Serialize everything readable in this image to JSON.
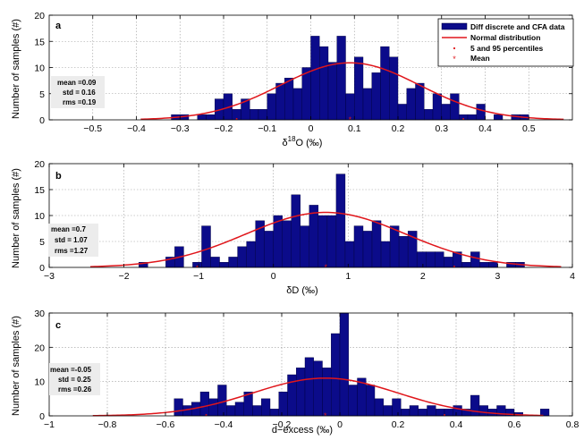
{
  "colors": {
    "bar": "#0b0b8a",
    "bar_edge": "#00003a",
    "normal": "#e0161b",
    "stats_box": "#ececec"
  },
  "legend": {
    "items": [
      {
        "label": "Diff discrete and CFA data",
        "kind": "bar"
      },
      {
        "label": "Normal distribution",
        "kind": "line"
      },
      {
        "label": "5 and 95 percentiles",
        "kind": "dot"
      },
      {
        "label": "Mean",
        "kind": "star"
      }
    ]
  },
  "chart_data": [
    {
      "type": "bar",
      "panel": "a",
      "xlabel": "δ18O (‰)",
      "xlabel_parts": {
        "delta": "δ",
        "sup": "18",
        "main": "O (‰)"
      },
      "ylabel": "Number of samples (#)",
      "xlim": [
        -0.6,
        0.6
      ],
      "ylim": [
        0,
        20
      ],
      "xticks": [
        -0.5,
        -0.4,
        -0.3,
        -0.2,
        -0.1,
        0,
        0.1,
        0.2,
        0.3,
        0.4,
        0.5
      ],
      "xtick_labels": [
        "−0.5",
        "−0.4",
        "−0.3",
        "−0.2",
        "−0.1",
        "0",
        "0.1",
        "0.2",
        "0.3",
        "0.4",
        "0.5"
      ],
      "yticks": [
        0,
        5,
        10,
        15,
        20
      ],
      "grid": true,
      "legend": "top-right",
      "stats": [
        "mean =0.09",
        "std = 0.16",
        "rms =0.19"
      ],
      "bin_width": 0.02,
      "bars": [
        [
          -0.31,
          1
        ],
        [
          -0.29,
          1
        ],
        [
          -0.25,
          1
        ],
        [
          -0.23,
          1
        ],
        [
          -0.21,
          4
        ],
        [
          -0.19,
          5
        ],
        [
          -0.17,
          2
        ],
        [
          -0.15,
          4
        ],
        [
          -0.13,
          2
        ],
        [
          -0.11,
          2
        ],
        [
          -0.09,
          5
        ],
        [
          -0.07,
          7
        ],
        [
          -0.05,
          8
        ],
        [
          -0.03,
          6
        ],
        [
          -0.01,
          10
        ],
        [
          0.01,
          16
        ],
        [
          0.03,
          14
        ],
        [
          0.05,
          11
        ],
        [
          0.07,
          16
        ],
        [
          0.09,
          5
        ],
        [
          0.11,
          12
        ],
        [
          0.13,
          6
        ],
        [
          0.15,
          9
        ],
        [
          0.17,
          14
        ],
        [
          0.19,
          12
        ],
        [
          0.21,
          3
        ],
        [
          0.23,
          6
        ],
        [
          0.25,
          7
        ],
        [
          0.27,
          2
        ],
        [
          0.29,
          5
        ],
        [
          0.31,
          3
        ],
        [
          0.33,
          5
        ],
        [
          0.35,
          1
        ],
        [
          0.37,
          1
        ],
        [
          0.39,
          3
        ],
        [
          0.43,
          1
        ],
        [
          0.47,
          1
        ],
        [
          0.49,
          1
        ]
      ],
      "normal": {
        "mean": 0.09,
        "std": 0.16,
        "peak": 10.9,
        "x_range": [
          -0.39,
          0.58
        ]
      },
      "percentiles": [
        -0.17,
        0.35
      ]
    },
    {
      "type": "bar",
      "panel": "b",
      "xlabel": "δD (‰)",
      "ylabel": "Number of samples (#)",
      "xlim": [
        -3,
        4
      ],
      "ylim": [
        0,
        20
      ],
      "xticks": [
        -3,
        -2,
        -1,
        0,
        1,
        2,
        3,
        4
      ],
      "xtick_labels": [
        "−3",
        "−2",
        "−1",
        "0",
        "1",
        "2",
        "3",
        "4"
      ],
      "yticks": [
        0,
        5,
        10,
        15,
        20
      ],
      "grid": true,
      "stats": [
        "mean =0.7",
        "std = 1.07",
        "rms =1.27"
      ],
      "bin_width": 0.12,
      "bars": [
        [
          -1.74,
          1
        ],
        [
          -1.38,
          2
        ],
        [
          -1.26,
          4
        ],
        [
          -1.02,
          1
        ],
        [
          -0.9,
          8
        ],
        [
          -0.78,
          2
        ],
        [
          -0.66,
          1
        ],
        [
          -0.54,
          2
        ],
        [
          -0.42,
          4
        ],
        [
          -0.3,
          5
        ],
        [
          -0.18,
          9
        ],
        [
          -0.06,
          7
        ],
        [
          0.06,
          10
        ],
        [
          0.18,
          9
        ],
        [
          0.3,
          14
        ],
        [
          0.42,
          8
        ],
        [
          0.54,
          12
        ],
        [
          0.66,
          10
        ],
        [
          0.78,
          10
        ],
        [
          0.9,
          18
        ],
        [
          1.02,
          5
        ],
        [
          1.14,
          8
        ],
        [
          1.26,
          7
        ],
        [
          1.38,
          9
        ],
        [
          1.5,
          5
        ],
        [
          1.62,
          8
        ],
        [
          1.74,
          6
        ],
        [
          1.86,
          7
        ],
        [
          1.98,
          3
        ],
        [
          2.1,
          3
        ],
        [
          2.22,
          3
        ],
        [
          2.34,
          2
        ],
        [
          2.46,
          3
        ],
        [
          2.58,
          1
        ],
        [
          2.7,
          3
        ],
        [
          2.82,
          1
        ],
        [
          2.94,
          1
        ],
        [
          3.18,
          1
        ],
        [
          3.3,
          1
        ]
      ],
      "normal": {
        "mean": 0.7,
        "std": 1.07,
        "peak": 10.6,
        "x_range": [
          -2.45,
          3.85
        ]
      },
      "percentiles": [
        -1.02,
        2.42
      ]
    },
    {
      "type": "bar",
      "panel": "c",
      "xlabel": "d−excess (‰)",
      "ylabel": "Number of samples (#)",
      "xlim": [
        -1,
        0.8
      ],
      "ylim": [
        0,
        30
      ],
      "xticks": [
        -1,
        -0.8,
        -0.6,
        -0.4,
        -0.2,
        0,
        0.2,
        0.4,
        0.6,
        0.8
      ],
      "xtick_labels": [
        "−1",
        "−0.8",
        "−0.6",
        "−0.4",
        "−0.2",
        "0",
        "0.2",
        "0.4",
        "0.6",
        "0.8"
      ],
      "yticks": [
        0,
        10,
        20,
        30
      ],
      "grid": true,
      "stats": [
        "mean =-0.05",
        "std = 0.25",
        "rms =0.26"
      ],
      "bin_width": 0.03,
      "bars": [
        [
          -0.555,
          5
        ],
        [
          -0.525,
          3
        ],
        [
          -0.495,
          4
        ],
        [
          -0.465,
          7
        ],
        [
          -0.435,
          5
        ],
        [
          -0.405,
          9
        ],
        [
          -0.375,
          3
        ],
        [
          -0.345,
          4
        ],
        [
          -0.315,
          7
        ],
        [
          -0.285,
          3
        ],
        [
          -0.255,
          5
        ],
        [
          -0.225,
          2
        ],
        [
          -0.195,
          7
        ],
        [
          -0.165,
          12
        ],
        [
          -0.135,
          14
        ],
        [
          -0.105,
          17
        ],
        [
          -0.075,
          16
        ],
        [
          -0.045,
          14
        ],
        [
          -0.015,
          24
        ],
        [
          0.015,
          30
        ],
        [
          0.045,
          9
        ],
        [
          0.075,
          11
        ],
        [
          0.105,
          9
        ],
        [
          0.135,
          5
        ],
        [
          0.165,
          3
        ],
        [
          0.195,
          5
        ],
        [
          0.225,
          2
        ],
        [
          0.255,
          3
        ],
        [
          0.285,
          2
        ],
        [
          0.315,
          3
        ],
        [
          0.345,
          2
        ],
        [
          0.375,
          2
        ],
        [
          0.405,
          3
        ],
        [
          0.435,
          2
        ],
        [
          0.465,
          6
        ],
        [
          0.495,
          3
        ],
        [
          0.525,
          2
        ],
        [
          0.555,
          3
        ],
        [
          0.585,
          2
        ],
        [
          0.615,
          1
        ],
        [
          0.705,
          2
        ]
      ],
      "normal": {
        "mean": -0.05,
        "std": 0.25,
        "peak": 11,
        "x_range": [
          -0.85,
          0.7
        ]
      },
      "percentiles": [
        -0.46,
        0.36
      ]
    }
  ]
}
